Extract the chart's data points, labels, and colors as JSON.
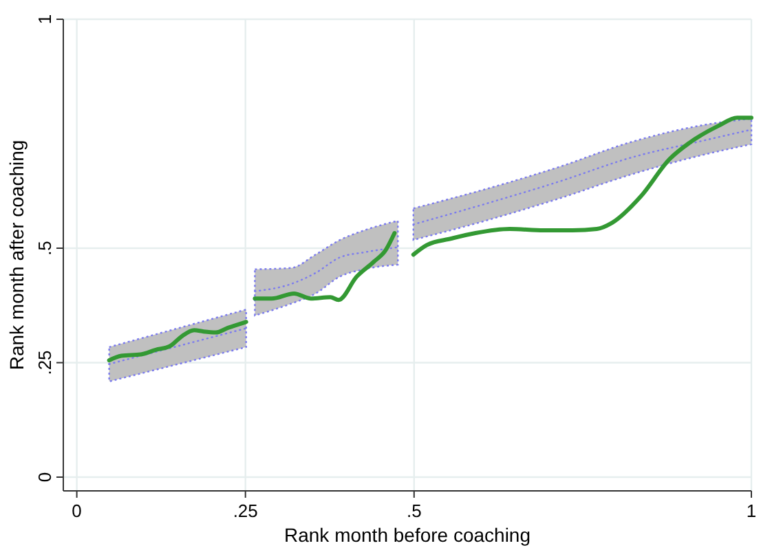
{
  "chart_data": {
    "type": "line",
    "xlabel": "Rank month before coaching",
    "ylabel": "Rank month after coaching",
    "xlim": [
      -0.02,
      1.0
    ],
    "ylim": [
      -0.03,
      1.0
    ],
    "xticks": [
      0,
      {
        "value": 0.25,
        "label": ".25"
      },
      {
        "value": 0.5,
        "label": ".5"
      },
      1
    ],
    "yticks": [
      0,
      {
        "value": 0.25,
        "label": ".25"
      },
      {
        "value": 0.5,
        "label": ".5"
      },
      1
    ],
    "grid": true,
    "series": [
      {
        "color": "#7b7bef",
        "line_style": "dotted",
        "x": [
          0.048,
          0.251
        ],
        "values": [
          0.247,
          0.325
        ],
        "lower": [
          0.209,
          0.284
        ],
        "upper": [
          0.284,
          0.366
        ]
      },
      {
        "color": "#7b7bef",
        "line_style": "dotted",
        "x": [
          0.264,
          0.318,
          0.354,
          0.39,
          0.426,
          0.476
        ],
        "values": [
          0.406,
          0.422,
          0.446,
          0.48,
          0.491,
          0.502
        ],
        "lower": [
          0.353,
          0.379,
          0.401,
          0.438,
          0.454,
          0.464
        ],
        "upper": [
          0.454,
          0.457,
          0.486,
          0.518,
          0.539,
          0.56
        ]
      },
      {
        "color": "#7b7bef",
        "line_style": "dotted",
        "x": [
          0.499,
          0.606,
          0.714,
          0.822,
          0.929,
          1.0
        ],
        "values": [
          0.552,
          0.597,
          0.645,
          0.698,
          0.735,
          0.759
        ],
        "lower": [
          0.518,
          0.56,
          0.608,
          0.661,
          0.704,
          0.727
        ],
        "upper": [
          0.587,
          0.629,
          0.677,
          0.732,
          0.769,
          0.783
        ]
      },
      {
        "color": "#339933",
        "line_style": "solid",
        "x": [
          0.048,
          0.066,
          0.095,
          0.117,
          0.138,
          0.156,
          0.174,
          0.188,
          0.206,
          0.224,
          0.251
        ],
        "values": [
          0.255,
          0.265,
          0.268,
          0.278,
          0.286,
          0.308,
          0.321,
          0.318,
          0.316,
          0.326,
          0.339
        ]
      },
      {
        "color": "#339933",
        "line_style": "solid",
        "x": [
          0.264,
          0.289,
          0.322,
          0.347,
          0.376,
          0.388,
          0.415,
          0.44,
          0.458,
          0.471
        ],
        "values": [
          0.39,
          0.39,
          0.401,
          0.39,
          0.393,
          0.387,
          0.438,
          0.47,
          0.496,
          0.533
        ]
      },
      {
        "color": "#339933",
        "line_style": "solid",
        "x": [
          0.499,
          0.519,
          0.555,
          0.591,
          0.642,
          0.692,
          0.735,
          0.771,
          0.793,
          0.836,
          0.879,
          0.908,
          0.951,
          0.979,
          1.0
        ],
        "values": [
          0.486,
          0.507,
          0.521,
          0.533,
          0.542,
          0.539,
          0.539,
          0.542,
          0.555,
          0.613,
          0.695,
          0.73,
          0.767,
          0.785,
          0.785
        ]
      }
    ]
  }
}
